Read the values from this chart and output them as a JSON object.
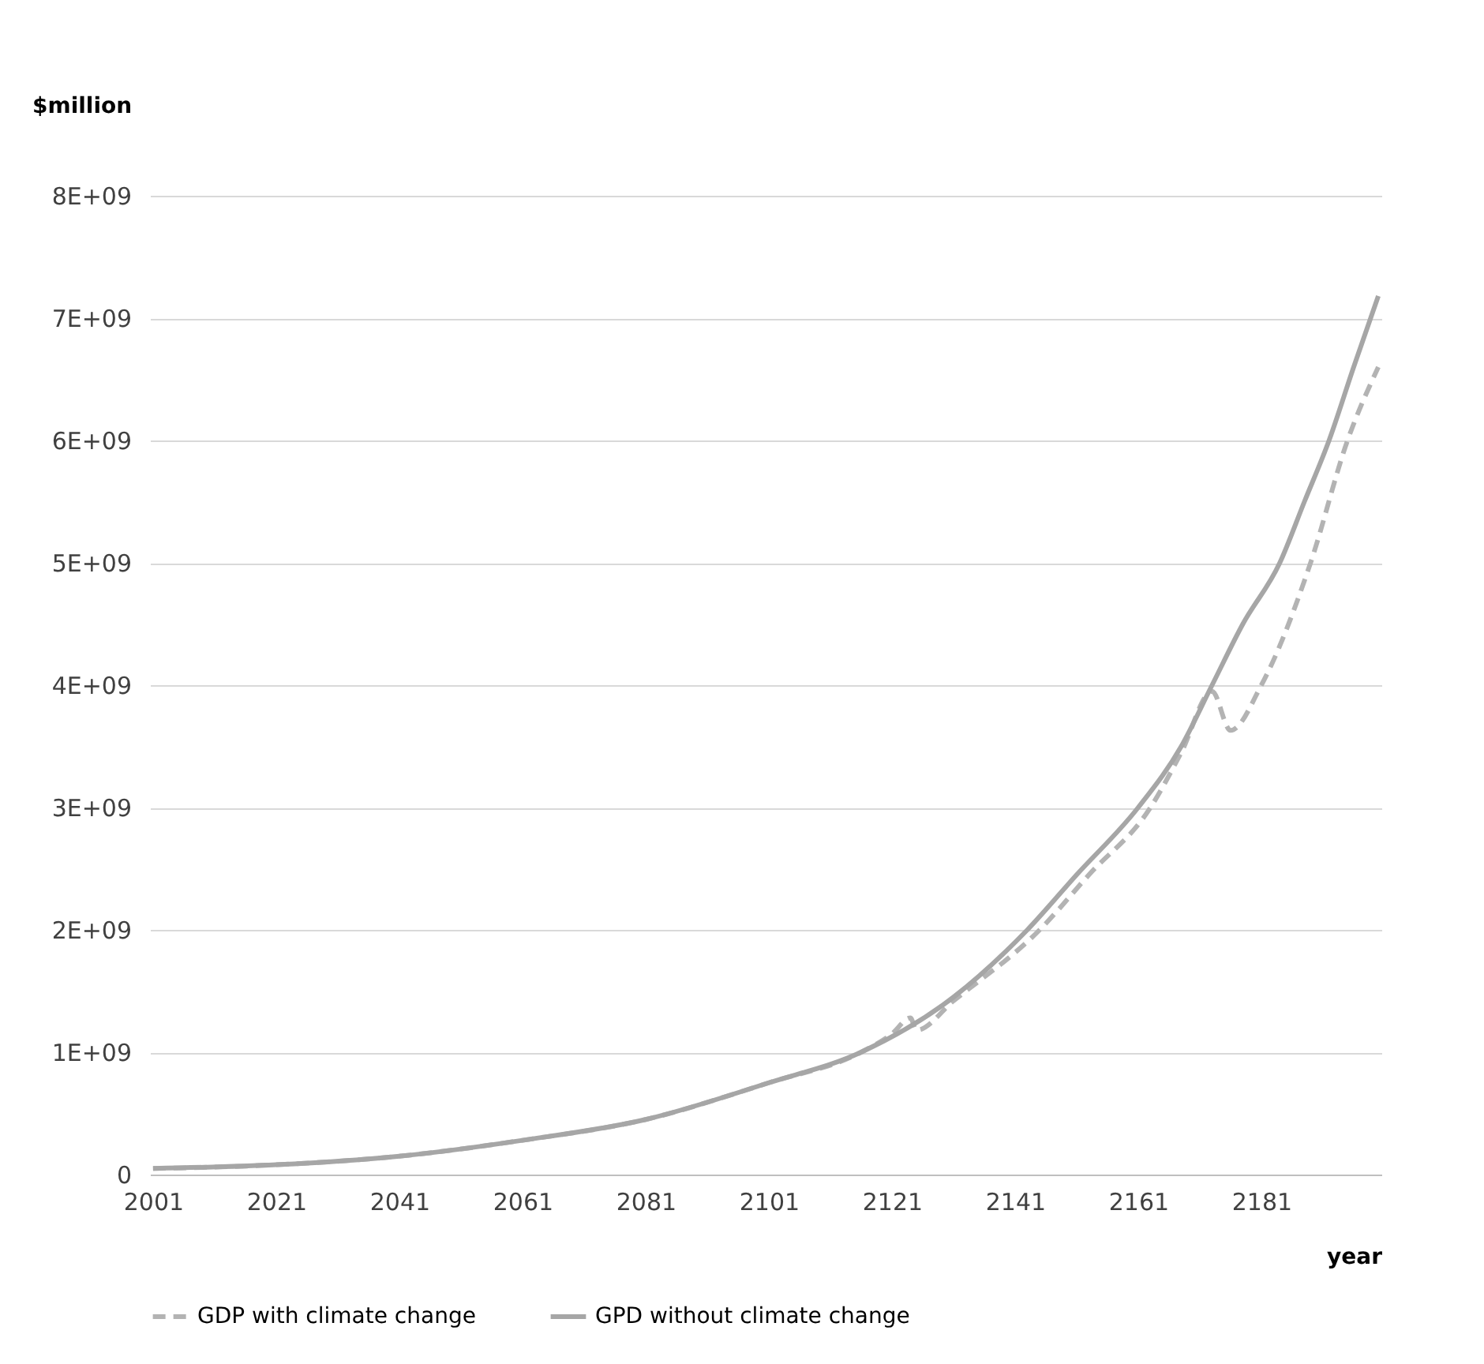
{
  "chart_data": {
    "type": "line",
    "xlabel": "year",
    "ylabel": "$million",
    "xlim": [
      2000.5,
      2200.5
    ],
    "xticks": [
      2001,
      2021,
      2041,
      2061,
      2081,
      2101,
      2121,
      2141,
      2161,
      2181
    ],
    "ylim": [
      0,
      8000000000
    ],
    "yticks": [
      0,
      {
        "value": 1000000000,
        "label": "1E+09"
      },
      {
        "value": 2000000000,
        "label": "2E+09"
      },
      {
        "value": 3000000000,
        "label": "3E+09"
      },
      {
        "value": 4000000000,
        "label": "4E+09"
      },
      {
        "value": 5000000000,
        "label": "5E+09"
      },
      {
        "value": 6000000000,
        "label": "6E+09"
      },
      {
        "value": 7000000000,
        "label": "7E+09"
      },
      {
        "value": 8000000000,
        "label": "8E+09"
      }
    ],
    "grid": "y",
    "legend": "bottom",
    "marker": "none",
    "series": [
      {
        "name": "GDP with climate change",
        "color": "#b3b3b3",
        "line_style": "dashed",
        "x": [
          2001,
          2021,
          2041,
          2061,
          2081,
          2101,
          2116,
          2121,
          2124,
          2125,
          2131,
          2145,
          2153,
          2163,
          2168,
          2173,
          2176,
          2181,
          2189,
          2195,
          2200
        ],
        "values": [
          50000000,
          80000000,
          150000000,
          280000000,
          450000000,
          750000000,
          1000000000,
          1150000000,
          1280000000,
          1180000000,
          1420000000,
          2000000000,
          2450000000,
          3000000000,
          3450000000,
          3950000000,
          3630000000,
          4000000000,
          5000000000,
          6000000000,
          6600000000
        ]
      },
      {
        "name": "GPD without climate change",
        "color": "#a6a6a6",
        "line_style": "solid",
        "x": [
          2001,
          2021,
          2041,
          2061,
          2081,
          2101,
          2116,
          2131,
          2143,
          2151,
          2161,
          2168,
          2173,
          2178,
          2184,
          2188,
          2192,
          2196,
          2200
        ],
        "values": [
          50000000,
          80000000,
          150000000,
          280000000,
          450000000,
          750000000,
          1000000000,
          1450000000,
          2000000000,
          2450000000,
          3000000000,
          3500000000,
          4000000000,
          4500000000,
          5000000000,
          5500000000,
          6000000000,
          6600000000,
          7180000000
        ]
      }
    ]
  }
}
